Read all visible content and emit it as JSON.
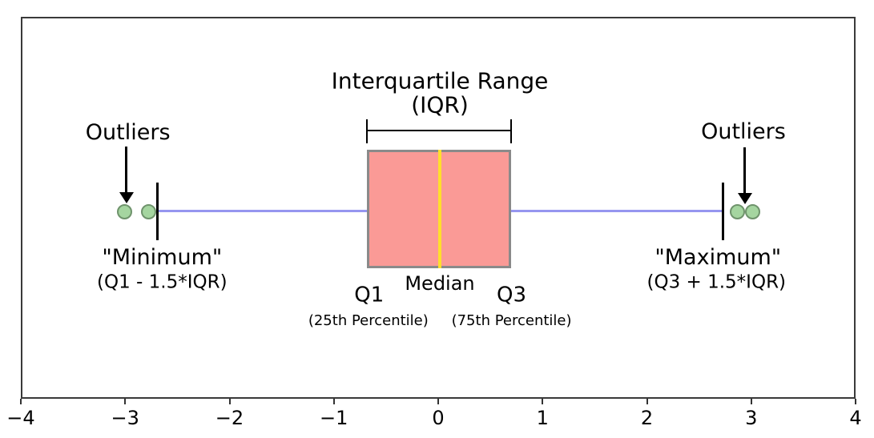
{
  "chart_data": {
    "type": "boxplot",
    "orientation": "horizontal",
    "title": "",
    "xlabel": "",
    "ylabel": "",
    "xlim": [
      -4,
      4
    ],
    "x_ticks": [
      -4,
      -3,
      -2,
      -1,
      0,
      1,
      2,
      3,
      4
    ],
    "x_tick_labels": [
      "−4",
      "−3",
      "−2",
      "−1",
      "0",
      "1",
      "2",
      "3",
      "4"
    ],
    "grid": false,
    "box": {
      "q1": -0.7,
      "median": 0,
      "q3": 0.68,
      "whisker_low": -2.7,
      "whisker_high": 2.72,
      "outliers_low": [
        -3.02,
        -2.79
      ],
      "outliers_high": [
        2.85,
        3.0
      ]
    },
    "colors": {
      "box_fill": "#fa9a96",
      "box_border": "#8a8a8a",
      "median_line": "#ffdf2b",
      "whisker": "#9696f0",
      "outlier_fill": "#a5d5a0",
      "outlier_border": "#6f936c",
      "annotation_text": "#000000"
    }
  },
  "annotations": {
    "iqr_title_line1": "Interquartile Range",
    "iqr_title_line2": "(IQR)",
    "outliers_left": "Outliers",
    "outliers_right": "Outliers",
    "min_line1": "\"Minimum\"",
    "min_line2": "(Q1 - 1.5*IQR)",
    "max_line1": "\"Maximum\"",
    "max_line2": "(Q3 + 1.5*IQR)",
    "q1_label": "Q1",
    "q1_sub": "(25th Percentile)",
    "median_label": "Median",
    "q3_label": "Q3",
    "q3_sub": "(75th Percentile)"
  }
}
